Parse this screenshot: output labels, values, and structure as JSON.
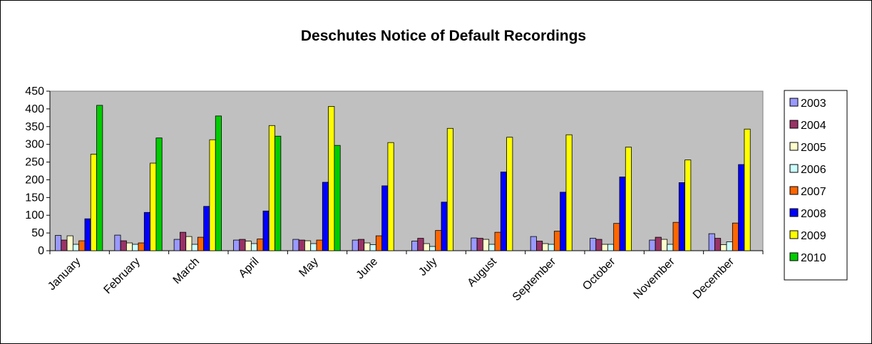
{
  "chart_data": {
    "type": "bar",
    "title": "Deschutes Notice of Default Recordings",
    "xlabel": "",
    "ylabel": "",
    "ylim": [
      0,
      450
    ],
    "y_ticks": [
      "0",
      "50",
      "100",
      "150",
      "200",
      "250",
      "300",
      "350",
      "400",
      "450"
    ],
    "grid": false,
    "legend_position": "right",
    "categories": [
      "January",
      "February",
      "March",
      "April",
      "May",
      "June",
      "July",
      "August",
      "September",
      "October",
      "November",
      "December"
    ],
    "series": [
      {
        "name": "2003",
        "color": "#9999ff",
        "values": [
          43,
          44,
          32,
          30,
          32,
          30,
          27,
          36,
          40,
          35,
          30,
          48
        ]
      },
      {
        "name": "2004",
        "color": "#993366",
        "values": [
          30,
          28,
          52,
          32,
          30,
          32,
          35,
          35,
          27,
          32,
          38,
          35
        ]
      },
      {
        "name": "2005",
        "color": "#ffffcc",
        "values": [
          42,
          22,
          40,
          27,
          28,
          22,
          20,
          32,
          20,
          18,
          32,
          17
        ]
      },
      {
        "name": "2006",
        "color": "#ccffff",
        "values": [
          18,
          18,
          18,
          20,
          20,
          17,
          12,
          18,
          18,
          18,
          18,
          25
        ]
      },
      {
        "name": "2007",
        "color": "#ff6600",
        "values": [
          28,
          22,
          38,
          33,
          30,
          42,
          57,
          52,
          55,
          77,
          80,
          78
        ]
      },
      {
        "name": "2008",
        "color": "#0000ff",
        "values": [
          90,
          108,
          125,
          112,
          193,
          183,
          137,
          222,
          165,
          208,
          192,
          243
        ]
      },
      {
        "name": "2009",
        "color": "#ffff00",
        "values": [
          272,
          247,
          313,
          353,
          407,
          305,
          345,
          320,
          327,
          292,
          256,
          343
        ]
      },
      {
        "name": "2010",
        "color": "#00cc00",
        "values": [
          410,
          318,
          380,
          323,
          297,
          null,
          null,
          null,
          null,
          null,
          null,
          null
        ]
      }
    ]
  }
}
